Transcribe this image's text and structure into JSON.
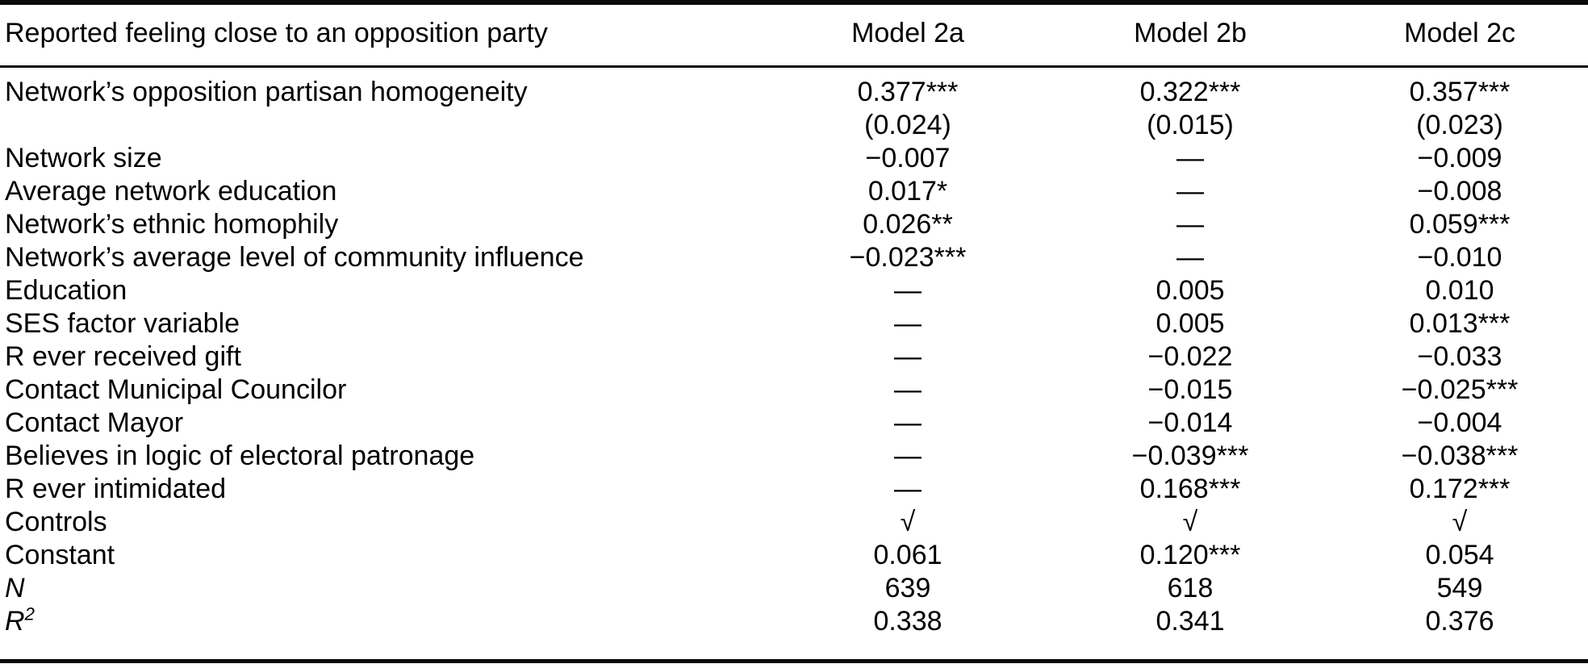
{
  "table": {
    "header": {
      "label": "Reported feeling close to an opposition party",
      "columns": [
        "Model 2a",
        "Model 2b",
        "Model 2c"
      ]
    },
    "rows": [
      {
        "label": "Network’s opposition partisan homogeneity",
        "values": [
          "0.377***",
          "0.322***",
          "0.357***"
        ]
      },
      {
        "label": "",
        "values": [
          "(0.024)",
          "(0.015)",
          "(0.023)"
        ]
      },
      {
        "label": "Network size",
        "values": [
          "−0.007",
          "—",
          "−0.009"
        ]
      },
      {
        "label": "Average network education",
        "values": [
          "0.017*",
          "—",
          "−0.008"
        ]
      },
      {
        "label": "Network’s ethnic homophily",
        "values": [
          "0.026**",
          "—",
          "0.059***"
        ]
      },
      {
        "label": "Network’s average level of community influence",
        "values": [
          "−0.023***",
          "—",
          "−0.010"
        ]
      },
      {
        "label": "Education",
        "values": [
          "—",
          "0.005",
          "0.010"
        ]
      },
      {
        "label": "SES factor variable",
        "values": [
          "—",
          "0.005",
          "0.013***"
        ]
      },
      {
        "label": "R ever received gift",
        "values": [
          "—",
          "−0.022",
          "−0.033"
        ]
      },
      {
        "label": "Contact Municipal Councilor",
        "values": [
          "—",
          "−0.015",
          "−0.025***"
        ]
      },
      {
        "label": "Contact Mayor",
        "values": [
          "—",
          "−0.014",
          "−0.004"
        ]
      },
      {
        "label": "Believes in logic of electoral patronage",
        "values": [
          "—",
          "−0.039***",
          "−0.038***"
        ]
      },
      {
        "label": "R ever intimidated",
        "values": [
          "—",
          "0.168***",
          "0.172***"
        ]
      },
      {
        "label": "Controls",
        "values": [
          "√",
          "√",
          "√"
        ]
      },
      {
        "label": "Constant",
        "values": [
          "0.061",
          "0.120***",
          "0.054"
        ]
      },
      {
        "label": "N",
        "italic": true,
        "values": [
          "639",
          "618",
          "549"
        ]
      },
      {
        "label": "R",
        "label_sup": "2",
        "italic": true,
        "values": [
          "0.338",
          "0.341",
          "0.376"
        ]
      }
    ]
  }
}
